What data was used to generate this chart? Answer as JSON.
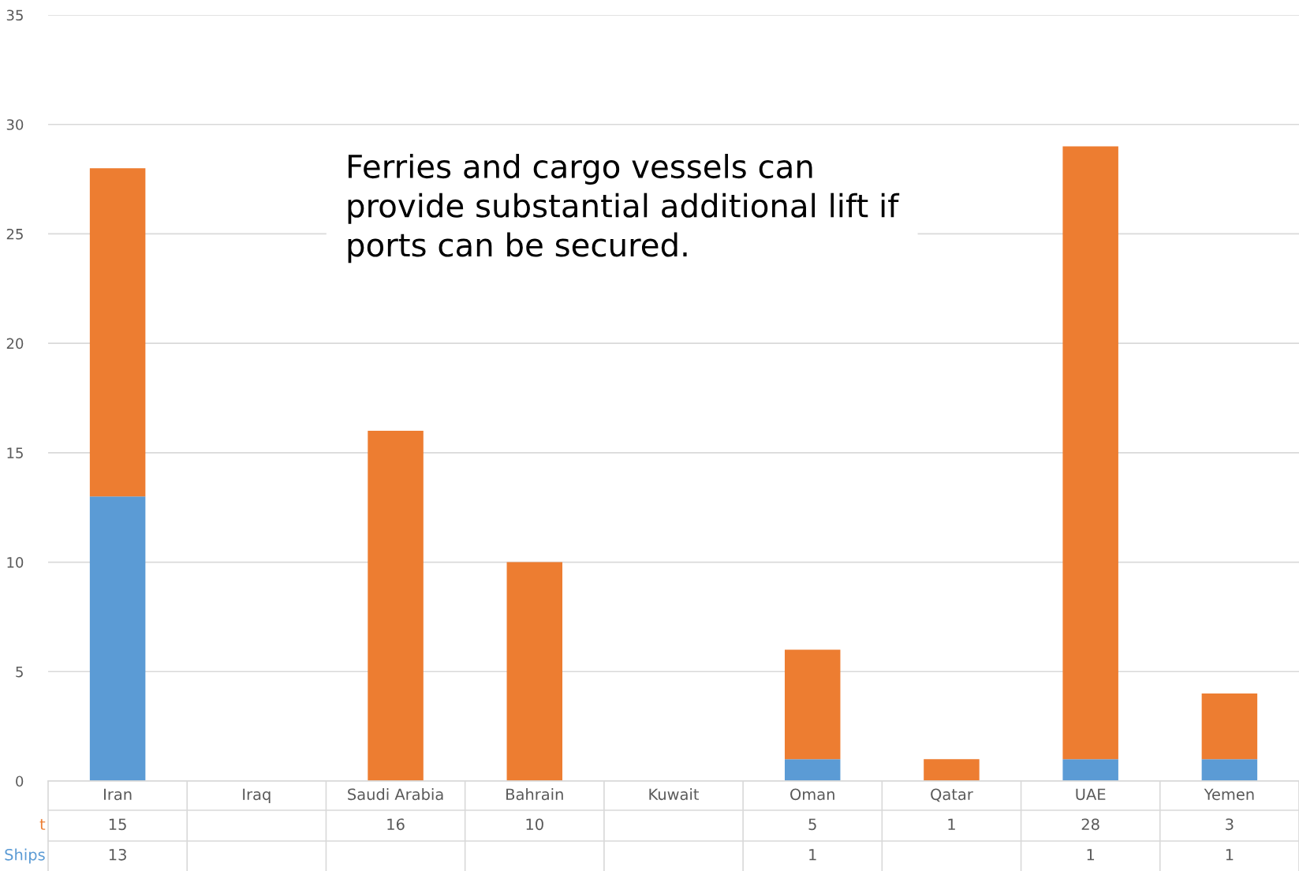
{
  "chart_data": {
    "type": "bar",
    "stacked": true,
    "categories": [
      "Iran",
      "Iraq",
      "Saudi Arabia",
      "Bahrain",
      "Kuwait",
      "Oman",
      "Qatar",
      "UAE",
      "Yemen"
    ],
    "series": [
      {
        "name": "Ships",
        "color": "#5b9bd5",
        "values": [
          13,
          null,
          null,
          null,
          null,
          1,
          null,
          1,
          1
        ]
      },
      {
        "name": "t",
        "color": "#ed7d31",
        "values": [
          15,
          null,
          16,
          10,
          null,
          5,
          1,
          28,
          3
        ]
      }
    ],
    "ylim": [
      0,
      35
    ],
    "yticks": [
      0,
      5,
      10,
      15,
      20,
      25,
      30,
      35
    ],
    "grid": "y",
    "data_labels": true,
    "legend": false,
    "annotations": [
      "Ferries and cargo vessels can\nprovide substantial additional lift if\nports can be secured."
    ]
  }
}
